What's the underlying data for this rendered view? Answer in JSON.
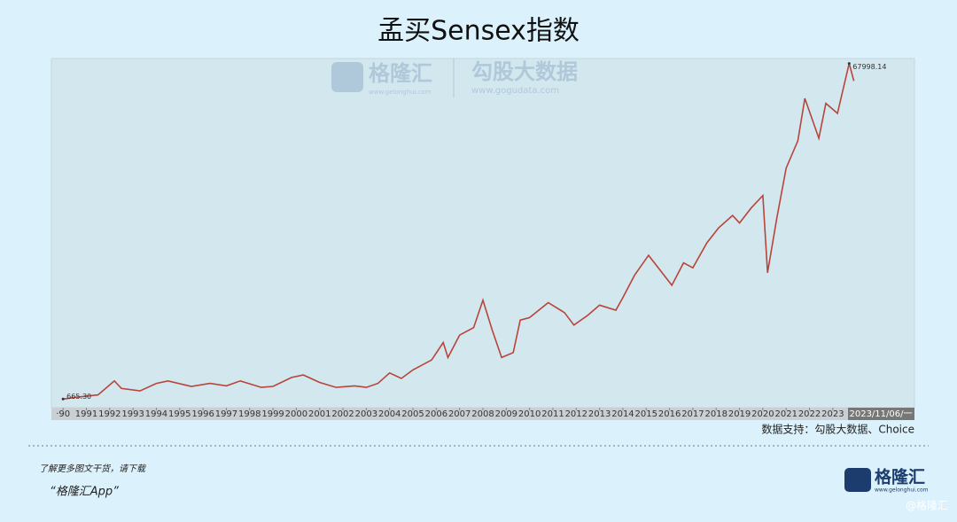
{
  "chart_data": {
    "type": "line",
    "title": "孟买Sensex指数",
    "source": "数据支持：勾股大数据、Choice",
    "date_label": "2023/11/06/一",
    "watermark": {
      "brand": "格隆汇",
      "brand_url": "www.gelonghui.com",
      "data": "勾股大数据",
      "data_url": "www.gogudata.com"
    },
    "footer": {
      "line1": "了解更多图文干货，请下载",
      "line2": "“格隆汇App”",
      "logo": "格隆汇",
      "logo_url": "www.gelonghui.com",
      "handle": "@格隆汇"
    },
    "xlim": [
      1989.5,
      2026.5
    ],
    "ylim": [
      0,
      69000
    ],
    "xticks": [
      {
        "value": 1990,
        "label": "·90"
      },
      1991,
      1992,
      1993,
      1994,
      1995,
      1996,
      1997,
      1998,
      1999,
      2000,
      2001,
      2002,
      2003,
      2004,
      2005,
      2006,
      2007,
      2008,
      2009,
      2010,
      2011,
      2012,
      2013,
      2014,
      2015,
      2016,
      2017,
      2018,
      2019,
      2020,
      2021,
      2022,
      2023
    ],
    "annotations": [
      {
        "x": 1990.0,
        "value": 665.3,
        "label": "665.30"
      },
      {
        "x": 2023.7,
        "value": 67998.14,
        "label": "67998.14"
      }
    ],
    "series": [
      {
        "name": "Sensex",
        "color": "#b8453a",
        "x": [
          1990.0,
          1990.5,
          1991.5,
          1992.2,
          1992.5,
          1993.3,
          1994.0,
          1994.5,
          1995.5,
          1996.3,
          1997.0,
          1997.6,
          1998.5,
          1999.0,
          1999.8,
          2000.3,
          2001.0,
          2001.7,
          2002.5,
          2003.0,
          2003.5,
          2004.0,
          2004.5,
          2005.0,
          2005.8,
          2006.3,
          2006.5,
          2007.0,
          2007.6,
          2008.0,
          2008.4,
          2008.8,
          2009.3,
          2009.6,
          2010.0,
          2010.8,
          2011.5,
          2011.9,
          2012.5,
          2013.0,
          2013.7,
          2014.0,
          2014.5,
          2015.1,
          2015.6,
          2016.1,
          2016.6,
          2017.0,
          2017.6,
          2018.1,
          2018.7,
          2019.0,
          2019.5,
          2020.0,
          2020.2,
          2020.6,
          2021.0,
          2021.5,
          2021.8,
          2022.4,
          2022.7,
          2023.2,
          2023.7,
          2023.9
        ],
        "values": [
          665.3,
          1000,
          1500,
          4300,
          2800,
          2300,
          3800,
          4300,
          3200,
          3800,
          3300,
          4300,
          3000,
          3200,
          5000,
          5500,
          4000,
          3000,
          3300,
          3000,
          3800,
          5900,
          4800,
          6500,
          8500,
          12000,
          9000,
          13500,
          15000,
          20500,
          14500,
          9000,
          10000,
          16500,
          17000,
          20000,
          18000,
          15500,
          17500,
          19500,
          18500,
          21000,
          25500,
          29500,
          26500,
          23500,
          28000,
          27000,
          32000,
          35000,
          37500,
          36000,
          39000,
          41500,
          26000,
          37000,
          47000,
          52500,
          61000,
          53000,
          60000,
          58000,
          67998.14,
          64500
        ]
      }
    ]
  }
}
